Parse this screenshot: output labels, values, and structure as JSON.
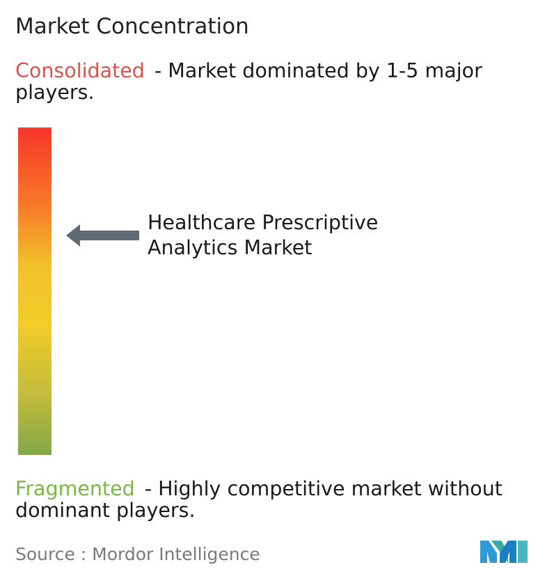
{
  "title": "Market Concentration",
  "consolidated": {
    "term": "Consolidated",
    "description": "- Market dominated by 1-5 major players.",
    "color": "#d9534f"
  },
  "fragmented": {
    "term": "Fragmented",
    "description": "- Highly competitive market without dominant players.",
    "color": "#7ab648"
  },
  "marker": {
    "label_line1": "Healthcare Prescriptive",
    "label_line2": "Analytics Market"
  },
  "source": "Source :  Mordor Intelligence",
  "logo_icon": "mordor-intelligence-logo",
  "chart_data": {
    "type": "bar",
    "scale": [
      "Consolidated",
      "Fragmented"
    ],
    "gradient_colors": [
      "#f9352a",
      "#f77a27",
      "#f2c12a",
      "#f2cc28",
      "#c8bd3a",
      "#83a84a"
    ],
    "markers": [
      {
        "name": "Healthcare Prescriptive Analytics Market",
        "concentration": 0.33
      }
    ]
  }
}
